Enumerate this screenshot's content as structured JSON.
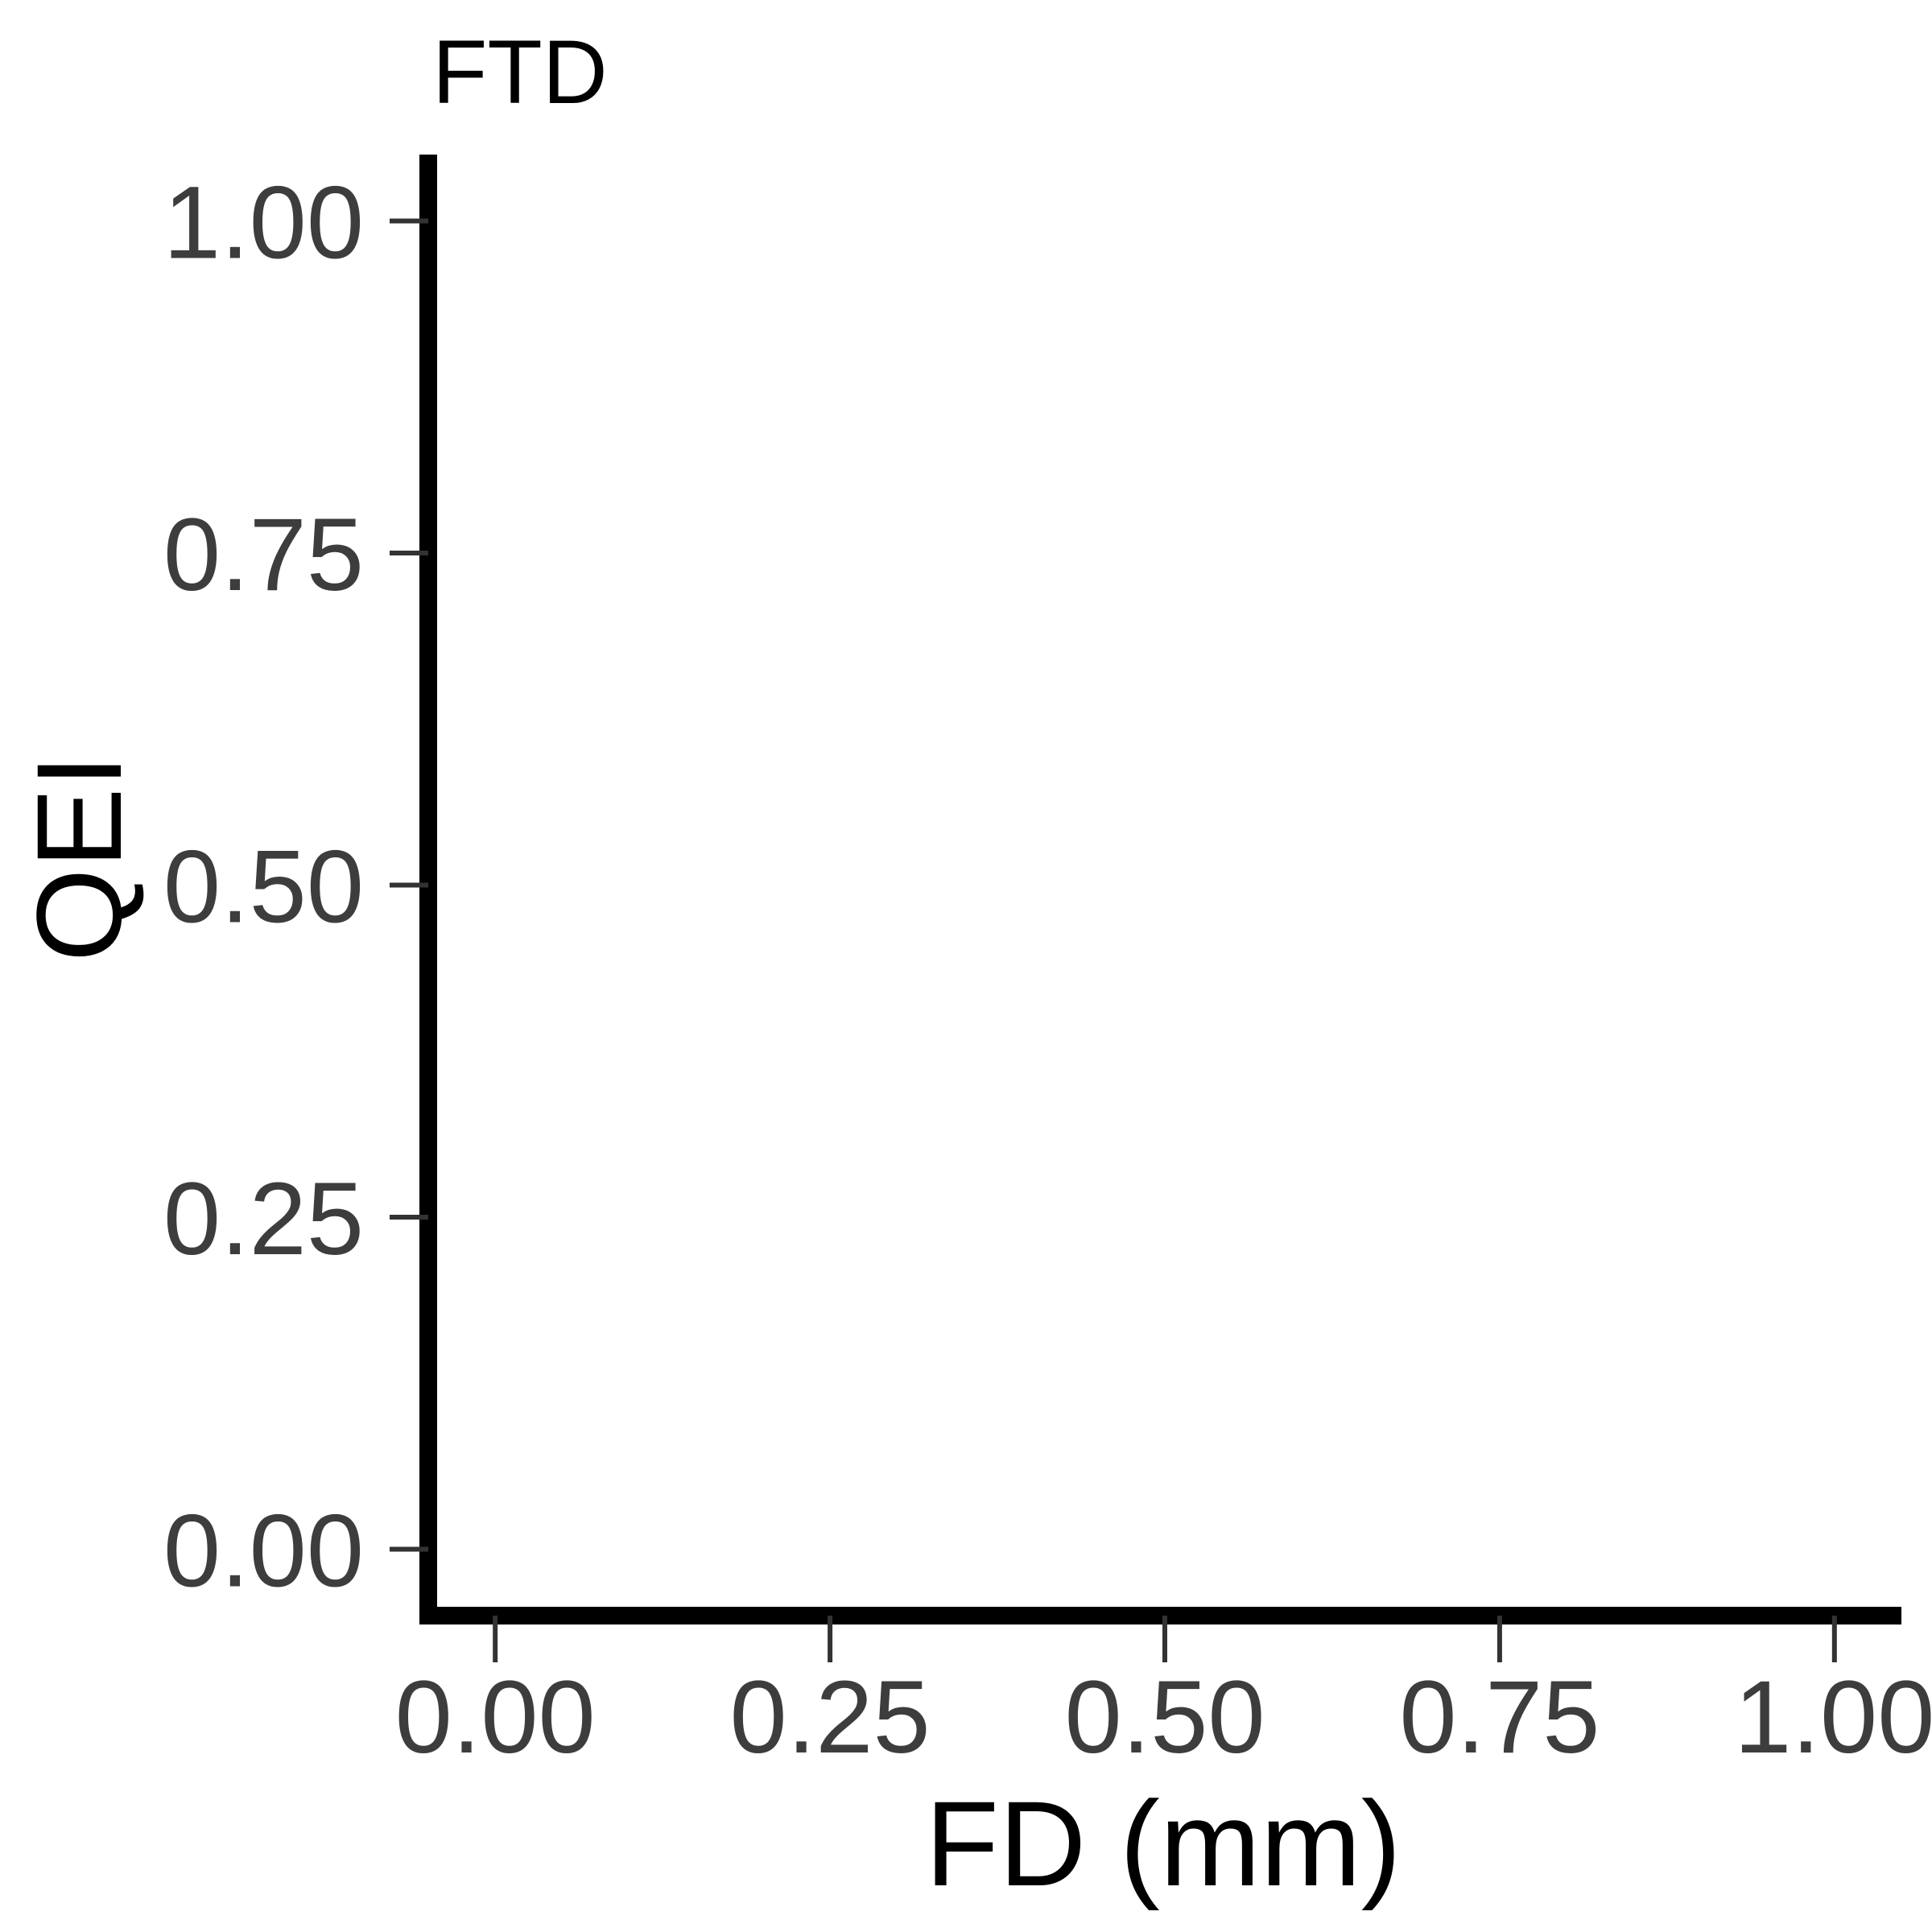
{
  "chart_data": {
    "type": "scatter",
    "title": "FTD",
    "xlabel": "FD (mm)",
    "ylabel": "QEI",
    "xlim": [
      -0.05,
      1.05
    ],
    "ylim": [
      -0.05,
      1.05
    ],
    "x_ticks": [
      0.0,
      0.25,
      0.5,
      0.75,
      1.0
    ],
    "x_tick_labels": [
      "0.00",
      "0.25",
      "0.50",
      "0.75",
      "1.00"
    ],
    "y_ticks": [
      0.0,
      0.25,
      0.5,
      0.75,
      1.0
    ],
    "y_tick_labels": [
      "0.00",
      "0.25",
      "0.50",
      "0.75",
      "1.00"
    ],
    "series": [],
    "grid": false,
    "colors": {
      "axis_line": "#000000",
      "tick": "#333333",
      "tick_label": "#3d3d3d"
    }
  }
}
